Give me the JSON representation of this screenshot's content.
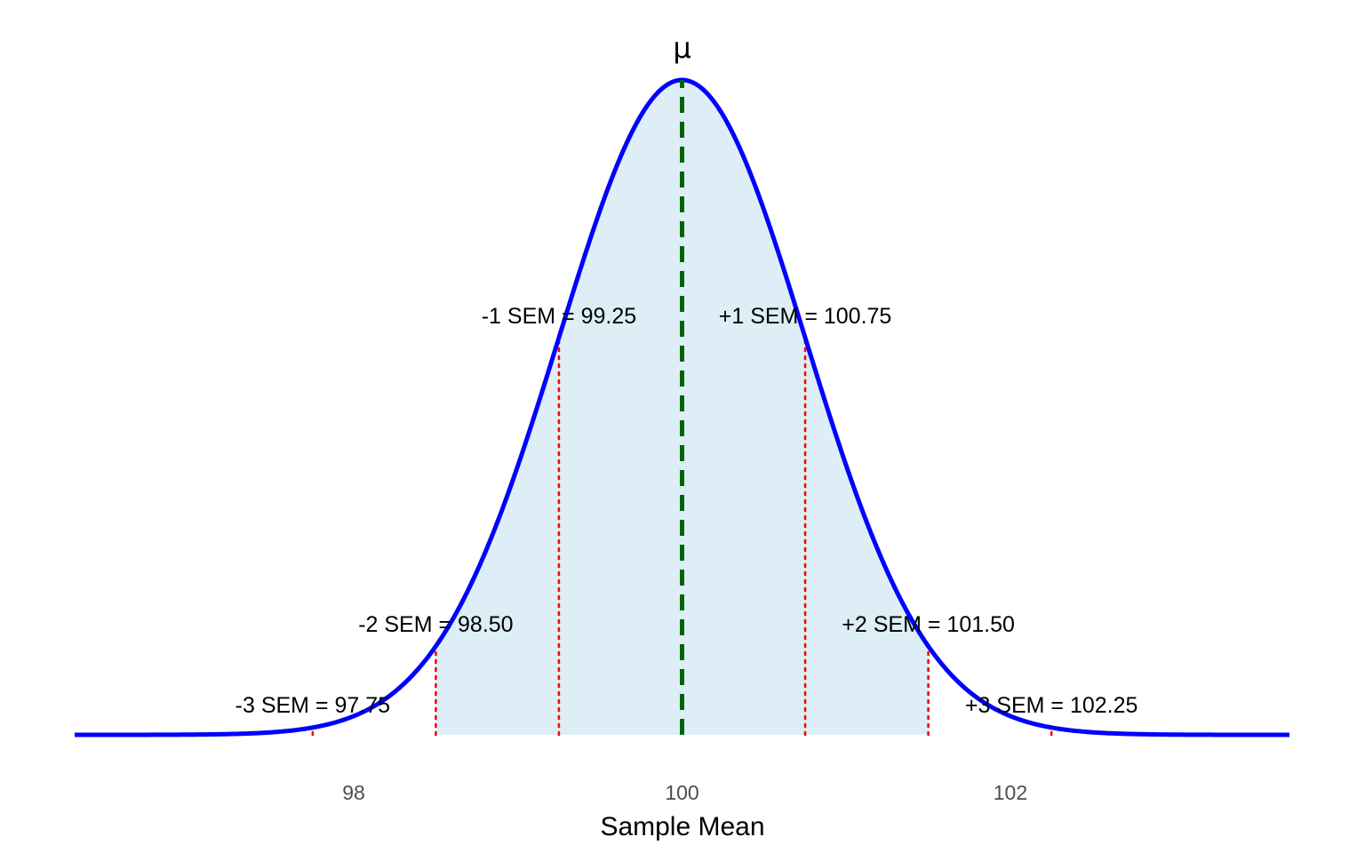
{
  "chart_data": {
    "type": "area",
    "title": "",
    "xlabel": "Sample Mean",
    "ylabel": "",
    "mean": 100,
    "sem": 0.75,
    "xlim": [
      96.3,
      103.7
    ],
    "x_ticks": [
      98,
      100,
      102
    ],
    "x_tick_labels": [
      "98",
      "100",
      "102"
    ],
    "shaded_range": [
      98.5,
      101.5
    ],
    "mean_label": "μ",
    "sem_markers": [
      {
        "label": "-3 SEM = 97.75",
        "x": 97.75
      },
      {
        "label": "-2 SEM = 98.50",
        "x": 98.5
      },
      {
        "label": "-1 SEM = 99.25",
        "x": 99.25
      },
      {
        "label": "+1 SEM = 100.75",
        "x": 100.75
      },
      {
        "label": "+2 SEM = 101.50",
        "x": 101.5
      },
      {
        "label": "+3 SEM = 102.25",
        "x": 102.25
      }
    ],
    "grid": false,
    "legend": "none",
    "colors": {
      "curve": "#0000ff",
      "fill": "#ddeef6",
      "mean_line": "#006400",
      "sem_lines": "#ff0000"
    }
  }
}
